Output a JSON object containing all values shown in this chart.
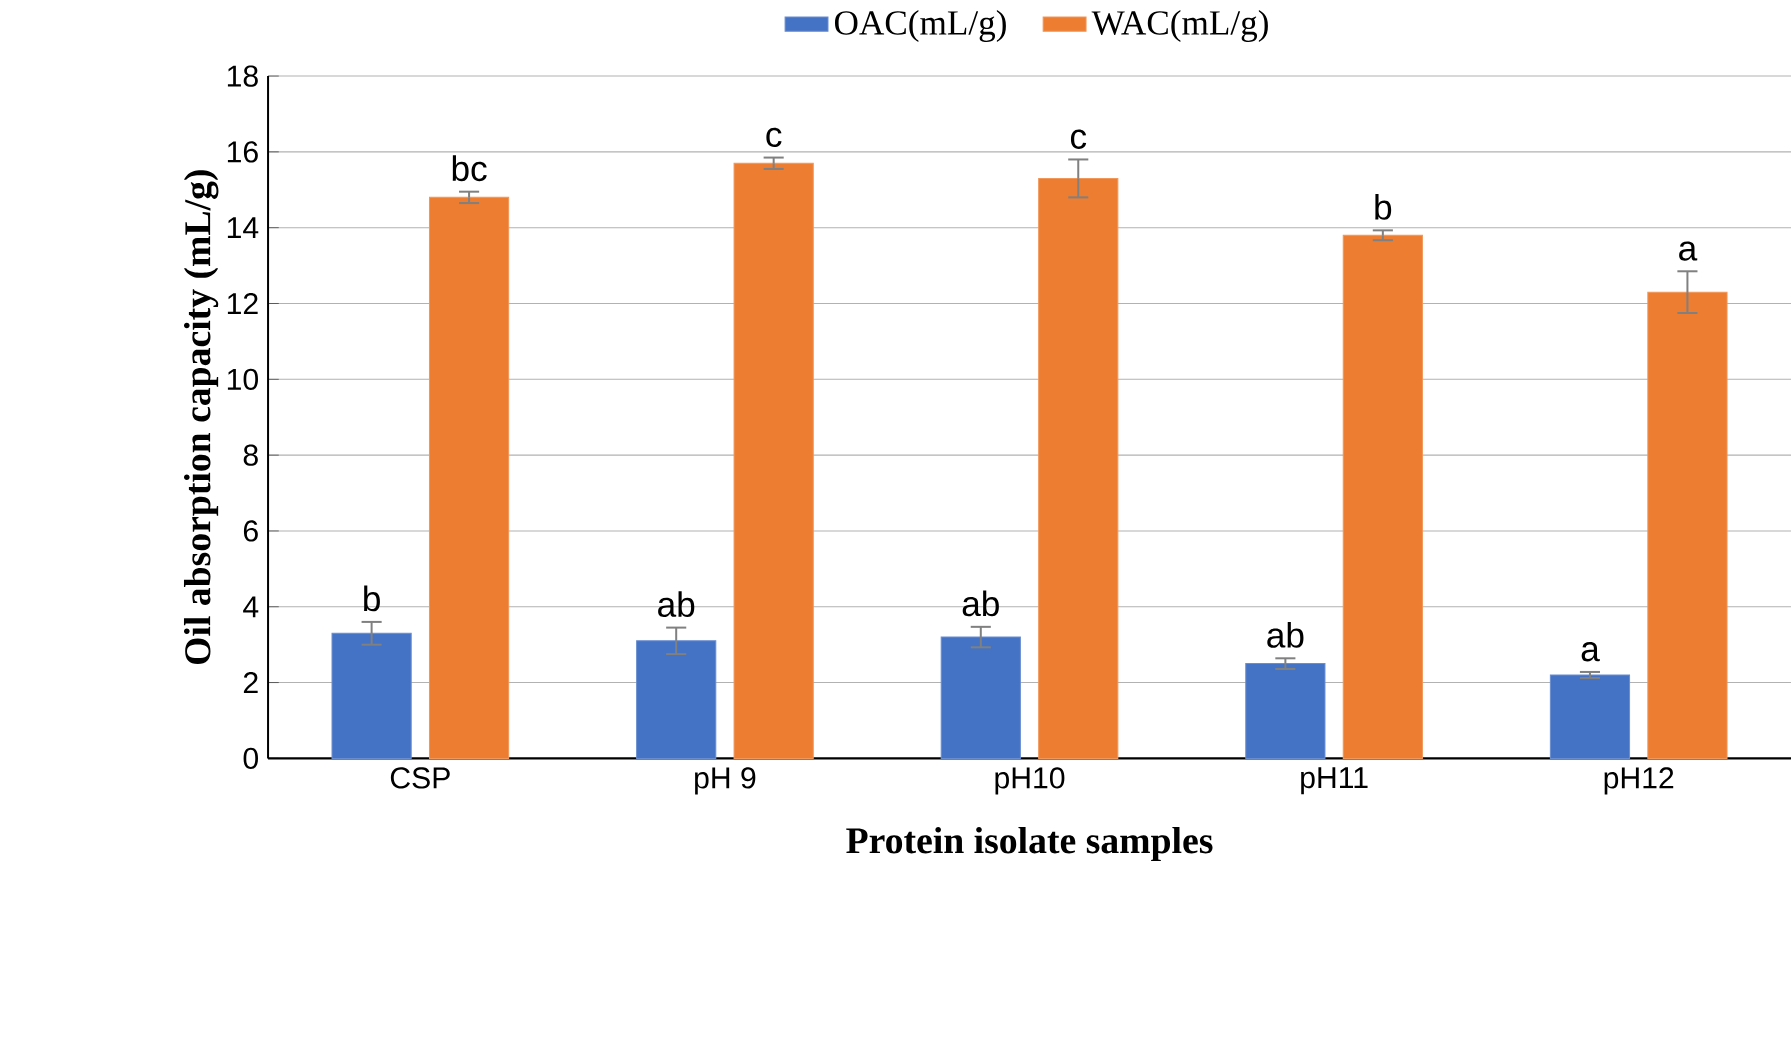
{
  "chart_data": {
    "type": "bar",
    "xlabel": "Protein isolate samples",
    "ylabel": "Oil absorption capacity (mL/g)",
    "categories": [
      "CSP",
      "pH 9",
      "pH10",
      "pH11",
      "pH12"
    ],
    "series": [
      {
        "name": "OAC(mL/g)",
        "color": "#4472c4",
        "values": [
          3.3,
          3.1,
          3.2,
          2.5,
          2.2
        ],
        "errors": [
          0.3,
          0.35,
          0.27,
          0.14,
          0.08
        ],
        "value_labels": [
          "b",
          "ab",
          "ab",
          "ab",
          "a"
        ]
      },
      {
        "name": "WAC(mL/g)",
        "color": "#ed7d31",
        "values": [
          14.8,
          15.7,
          15.3,
          13.8,
          12.3
        ],
        "errors": [
          0.15,
          0.15,
          0.5,
          0.13,
          0.55
        ],
        "value_labels": [
          "bc",
          "c",
          "c",
          "b",
          "a"
        ]
      }
    ],
    "ylim": [
      0,
      18
    ],
    "yticks": [
      0,
      2,
      4,
      6,
      8,
      10,
      12,
      14,
      16,
      18
    ],
    "grid": "y",
    "legend": "top"
  }
}
